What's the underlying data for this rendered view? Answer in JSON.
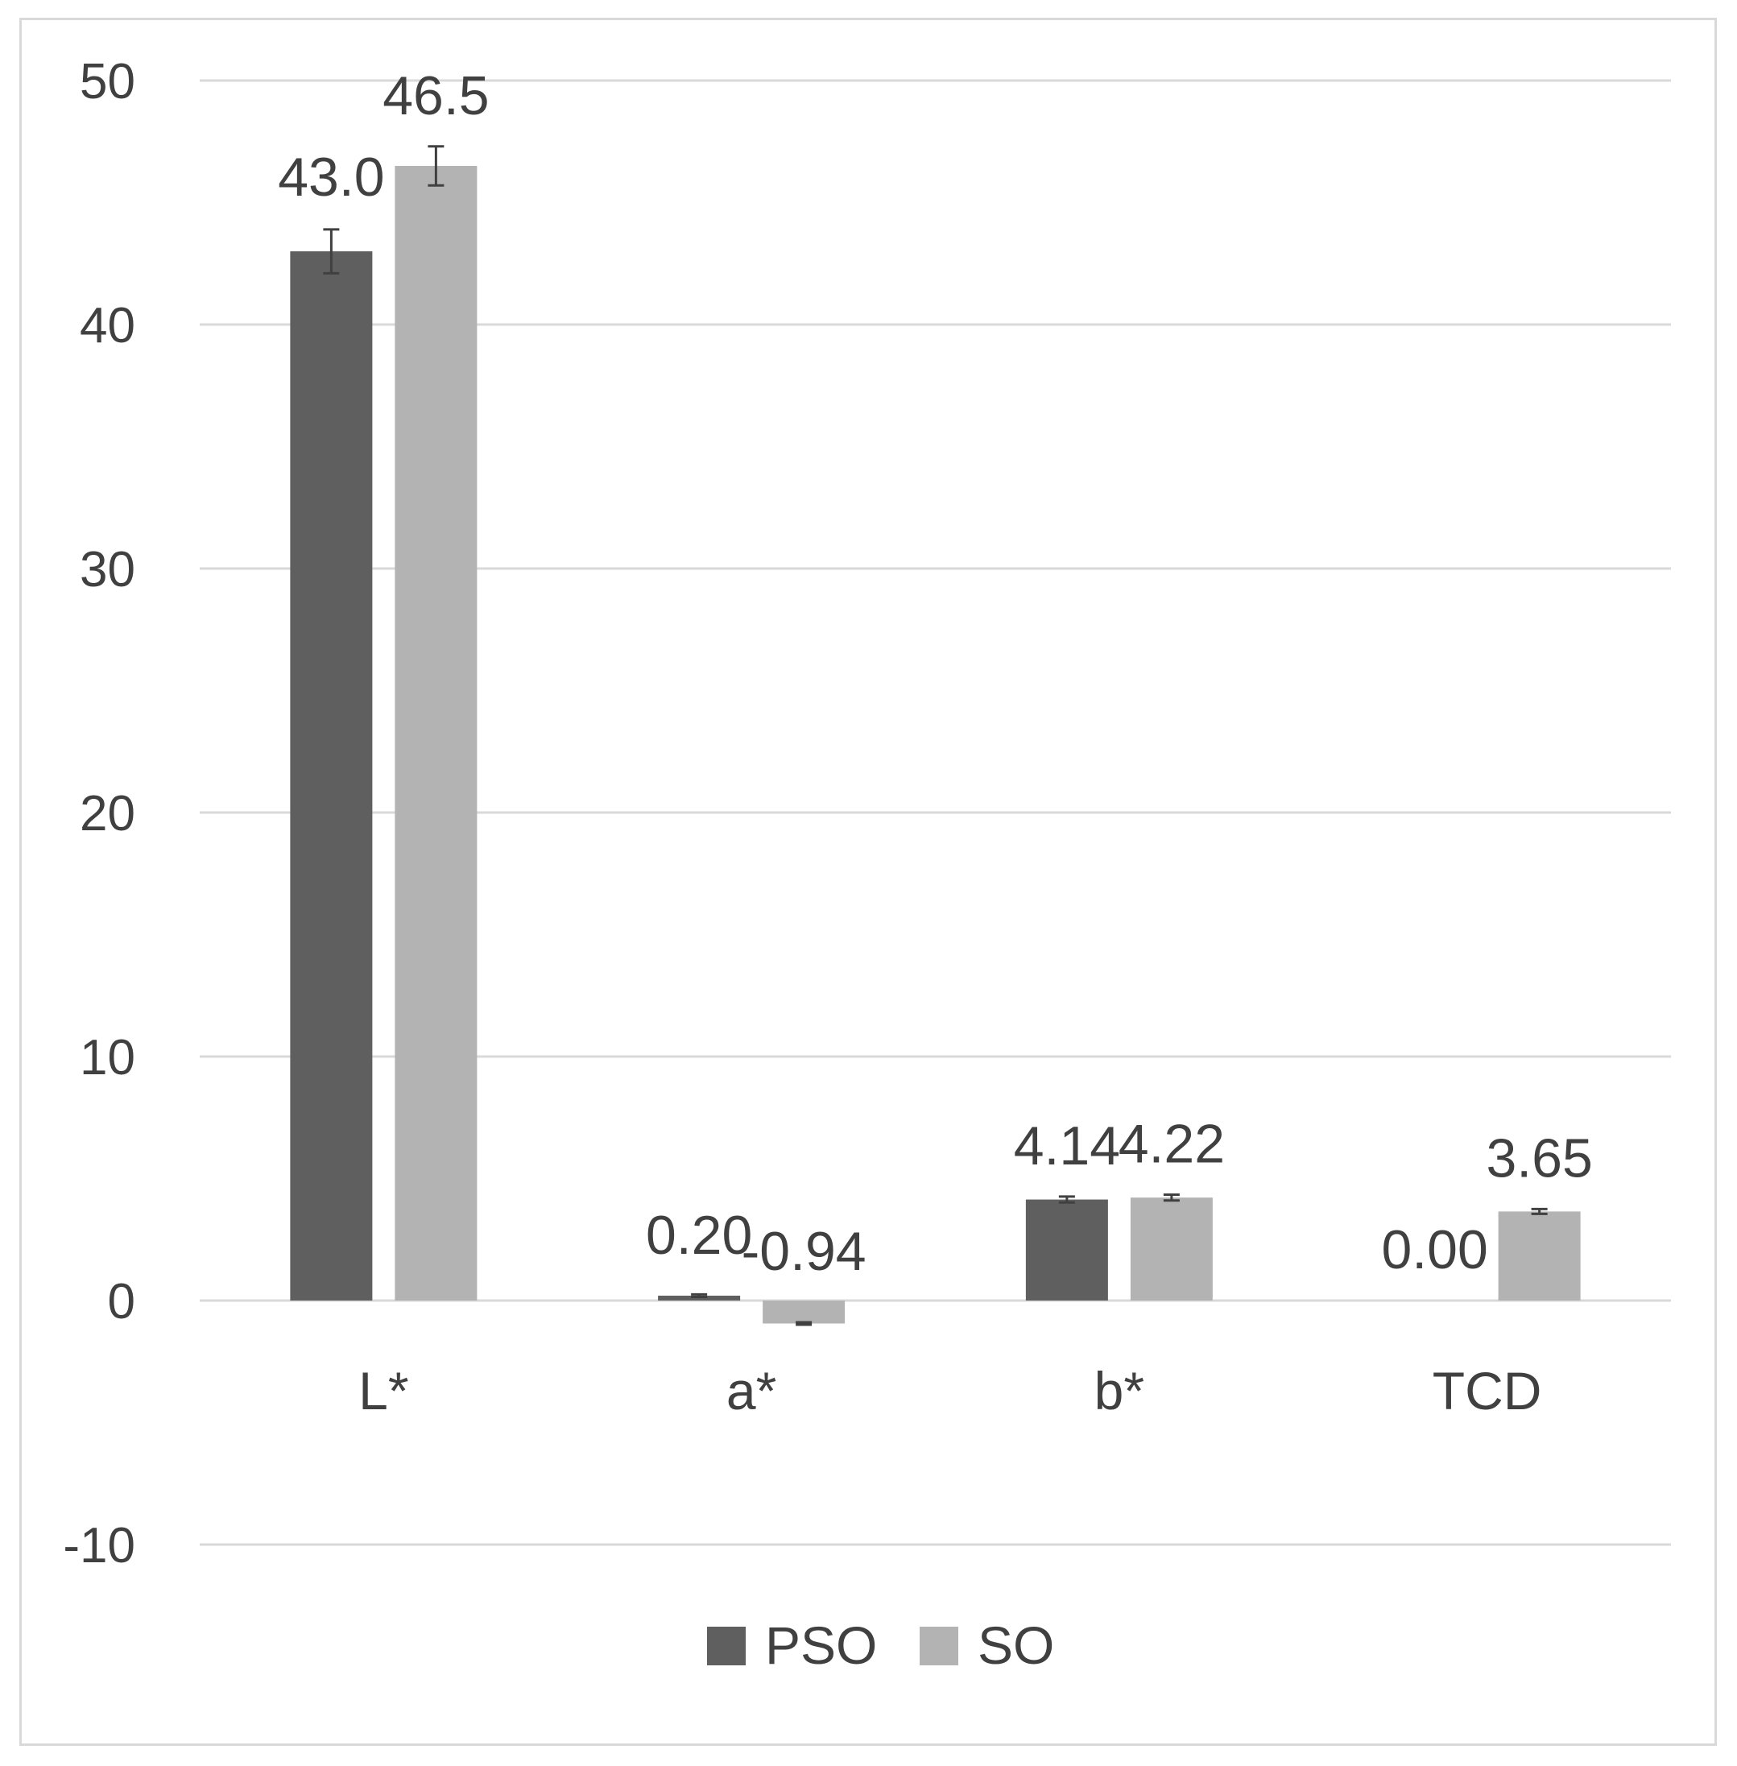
{
  "chart_data": {
    "type": "bar",
    "categories": [
      "L*",
      "a*",
      "b*",
      "TCD"
    ],
    "series": [
      {
        "name": "PSO",
        "color": "#5f5f5f",
        "values": [
          43.0,
          0.2,
          4.14,
          0.0
        ],
        "labels": [
          "43.0",
          "0.20",
          "4.14",
          "0.00"
        ],
        "errors": [
          0.9,
          0.05,
          0.12,
          0
        ]
      },
      {
        "name": "SO",
        "color": "#b3b3b3",
        "values": [
          46.5,
          -0.94,
          4.22,
          3.65
        ],
        "labels": [
          "46.5",
          "-0.94",
          "4.22",
          "3.65"
        ],
        "errors": [
          0.8,
          0.05,
          0.12,
          0.1
        ]
      }
    ],
    "y_ticks": [
      "-10",
      "0",
      "10",
      "20",
      "30",
      "40",
      "50"
    ],
    "ylim": [
      -10,
      50
    ],
    "title": "",
    "xlabel": "",
    "ylabel": "",
    "grid": true,
    "legend_position": "bottom-center",
    "grid_color": "#d9d9d9"
  }
}
